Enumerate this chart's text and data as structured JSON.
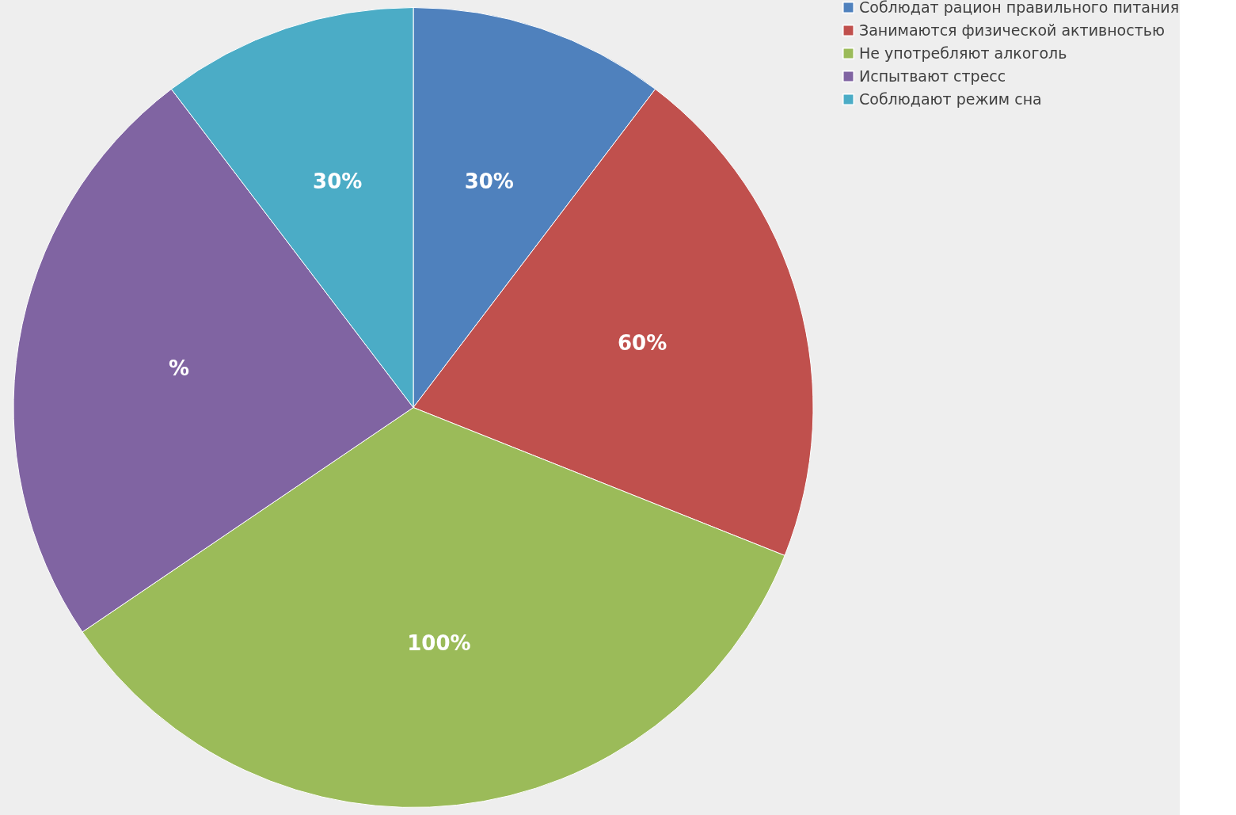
{
  "chart_data": {
    "type": "pie",
    "categories": [
      "Соблюдат рацион правильного питания",
      "Занимаются физической активностью",
      "Не употребляют алкоголь",
      "Испытвают стресс",
      "Соблюдают режим сна"
    ],
    "values": [
      30,
      60,
      100,
      70,
      30
    ],
    "colors": [
      "#4f81bd",
      "#c0504d",
      "#9bbb59",
      "#8064a2",
      "#4bacc6"
    ],
    "value_labels": [
      "30%",
      "60%",
      "100%",
      "%",
      "30%"
    ],
    "legend": "right"
  }
}
